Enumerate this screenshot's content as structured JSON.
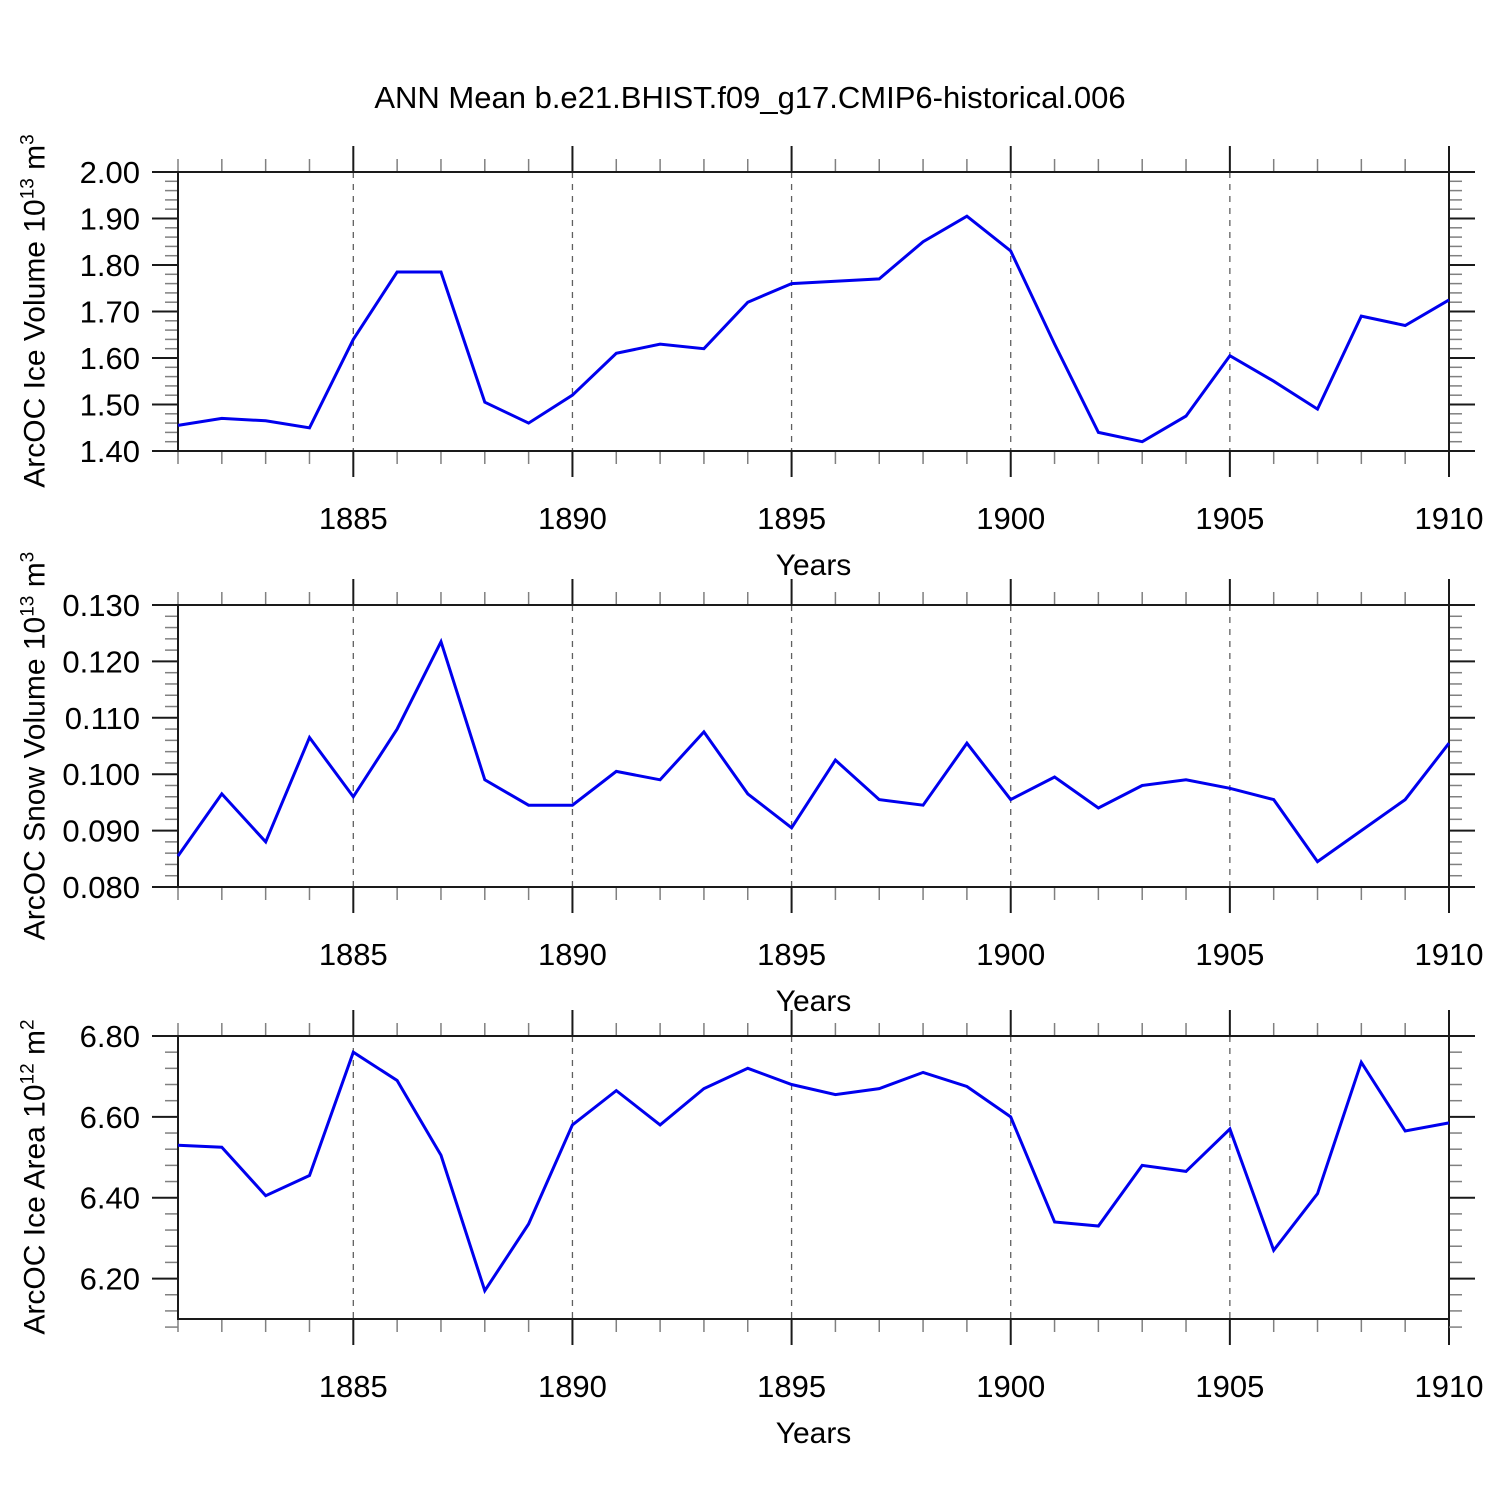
{
  "title": "ANN Mean b.e21.BHIST.f09_g17.CMIP6-historical.006",
  "style": {
    "line_color": "#0000EE",
    "frame_color": "#1a1a1a",
    "major_tick_color": "#1a1a1a",
    "minor_tick_color": "#808080",
    "grid_color": "#606060"
  },
  "years": [
    1881,
    1882,
    1883,
    1884,
    1885,
    1886,
    1887,
    1888,
    1889,
    1890,
    1891,
    1892,
    1893,
    1894,
    1895,
    1896,
    1897,
    1898,
    1899,
    1900,
    1901,
    1902,
    1903,
    1904,
    1905,
    1906,
    1907,
    1908,
    1909,
    1910
  ],
  "chart_data": [
    {
      "type": "line",
      "panel": "ice-volume",
      "xlabel": "Years",
      "ylabel_parts": {
        "text": "ArcOC Ice Volume 10",
        "sup1": "13",
        "unit": " m",
        "sup2": "3"
      },
      "xlim": [
        1881,
        1910
      ],
      "ylim": [
        1.4,
        2.0
      ],
      "xticks_major": [
        1885,
        1890,
        1895,
        1900,
        1905,
        1910
      ],
      "grid_years": [
        1885,
        1890,
        1895,
        1900,
        1905
      ],
      "yticks": [
        2.0,
        1.9,
        1.8,
        1.7,
        1.6,
        1.5,
        1.4
      ],
      "ytick_labels": [
        "2.00",
        "1.90",
        "1.80",
        "1.70",
        "1.60",
        "1.50",
        "1.40"
      ],
      "y_minor_step": 0.02,
      "grid": "x-dashed",
      "legend": "none",
      "values": [
        1.455,
        1.47,
        1.465,
        1.45,
        1.64,
        1.785,
        1.785,
        1.505,
        1.46,
        1.52,
        1.61,
        1.63,
        1.62,
        1.72,
        1.76,
        1.765,
        1.77,
        1.85,
        1.905,
        1.83,
        1.63,
        1.44,
        1.42,
        1.475,
        1.605,
        1.55,
        1.49,
        1.69,
        1.67,
        1.725
      ]
    },
    {
      "type": "line",
      "panel": "snow-volume",
      "xlabel": "Years",
      "ylabel_parts": {
        "text": "ArcOC Snow Volume 10",
        "sup1": "13",
        "unit": " m",
        "sup2": "3"
      },
      "xlim": [
        1881,
        1910
      ],
      "ylim": [
        0.08,
        0.13
      ],
      "xticks_major": [
        1885,
        1890,
        1895,
        1900,
        1905,
        1910
      ],
      "grid_years": [
        1885,
        1890,
        1895,
        1900,
        1905
      ],
      "yticks": [
        0.13,
        0.12,
        0.11,
        0.1,
        0.09,
        0.08
      ],
      "ytick_labels": [
        "0.130",
        "0.120",
        "0.110",
        "0.100",
        "0.090",
        "0.080"
      ],
      "y_minor_step": 0.002,
      "grid": "x-dashed",
      "legend": "none",
      "values": [
        0.0855,
        0.0965,
        0.088,
        0.1065,
        0.096,
        0.108,
        0.1235,
        0.099,
        0.0945,
        0.0945,
        0.1005,
        0.099,
        0.1075,
        0.0965,
        0.0905,
        0.1025,
        0.0955,
        0.0945,
        0.1055,
        0.0955,
        0.0995,
        0.094,
        0.098,
        0.099,
        0.0975,
        0.0955,
        0.0845,
        0.09,
        0.0955,
        0.1055
      ]
    },
    {
      "type": "line",
      "panel": "ice-area",
      "xlabel": "Years",
      "ylabel_parts": {
        "text": "ArcOC Ice Area 10",
        "sup1": "12",
        "unit": " m",
        "sup2": "2"
      },
      "xlim": [
        1881,
        1910
      ],
      "ylim": [
        6.1,
        6.8
      ],
      "xticks_major": [
        1885,
        1890,
        1895,
        1900,
        1905,
        1910
      ],
      "grid_years": [
        1885,
        1890,
        1895,
        1900,
        1905
      ],
      "yticks": [
        6.8,
        6.6,
        6.4,
        6.2
      ],
      "ytick_labels": [
        "6.80",
        "6.60",
        "6.40",
        "6.20"
      ],
      "y_minor_step": 0.04,
      "grid": "x-dashed",
      "legend": "none",
      "values": [
        6.53,
        6.525,
        6.405,
        6.455,
        6.76,
        6.69,
        6.505,
        6.17,
        6.335,
        6.58,
        6.665,
        6.58,
        6.67,
        6.72,
        6.68,
        6.655,
        6.67,
        6.71,
        6.675,
        6.6,
        6.34,
        6.33,
        6.48,
        6.465,
        6.57,
        6.27,
        6.41,
        6.735,
        6.565,
        6.585
      ]
    }
  ]
}
